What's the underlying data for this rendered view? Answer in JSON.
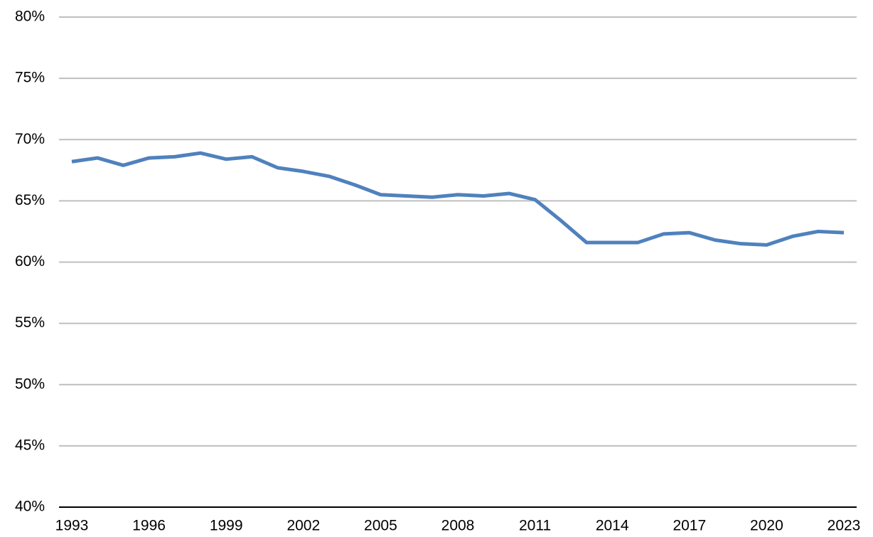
{
  "chart_data": {
    "type": "line",
    "x": [
      1993,
      1994,
      1995,
      1996,
      1997,
      1998,
      1999,
      2000,
      2001,
      2002,
      2003,
      2004,
      2005,
      2006,
      2007,
      2008,
      2009,
      2010,
      2011,
      2012,
      2013,
      2014,
      2015,
      2016,
      2017,
      2018,
      2019,
      2020,
      2021,
      2022,
      2023
    ],
    "series": [
      {
        "color": "#4f81bd",
        "values": [
          68.2,
          68.5,
          67.9,
          68.5,
          68.6,
          68.9,
          68.4,
          68.6,
          67.7,
          67.4,
          67.0,
          66.3,
          65.5,
          65.4,
          65.3,
          65.5,
          65.4,
          65.6,
          65.1,
          63.4,
          61.6,
          61.6,
          61.6,
          62.3,
          62.4,
          61.8,
          61.5,
          61.4,
          62.1,
          62.5,
          62.4
        ]
      }
    ],
    "xlim": [
      1993,
      2023
    ],
    "xticks": [
      1993,
      1996,
      1999,
      2002,
      2005,
      2008,
      2011,
      2014,
      2017,
      2020,
      2023
    ],
    "ylim": [
      40,
      80
    ],
    "yticks": [
      {
        "value": 40,
        "label": "40%"
      },
      {
        "value": 45,
        "label": "45%"
      },
      {
        "value": 50,
        "label": "50%"
      },
      {
        "value": 55,
        "label": "55%"
      },
      {
        "value": 60,
        "label": "60%"
      },
      {
        "value": 65,
        "label": "65%"
      },
      {
        "value": 70,
        "label": "70%"
      },
      {
        "value": 75,
        "label": "75%"
      },
      {
        "value": 80,
        "label": "80%"
      }
    ],
    "grid": true
  }
}
